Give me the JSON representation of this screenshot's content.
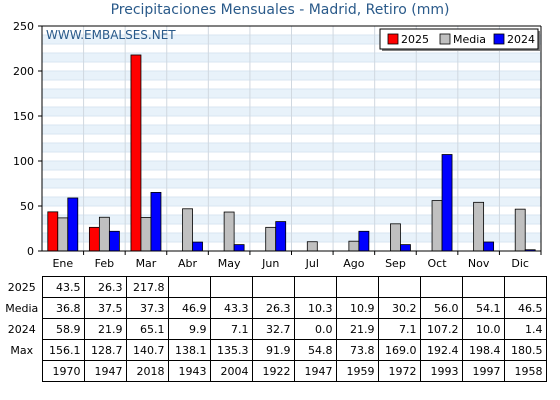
{
  "chart_data": {
    "type": "bar",
    "title": "Precipitaciones Mensuales - Madrid, Retiro (mm)",
    "watermark": "WWW.EMBALSES.NET",
    "categories": [
      "Ene",
      "Feb",
      "Mar",
      "Abr",
      "May",
      "Jun",
      "Jul",
      "Ago",
      "Sep",
      "Oct",
      "Nov",
      "Dic"
    ],
    "ylim": [
      0,
      250
    ],
    "yticks": [
      0,
      50,
      100,
      150,
      200,
      250
    ],
    "grid": true,
    "legend_position": "top-right",
    "series": [
      {
        "name": "2025",
        "color": "#ff0000",
        "values": [
          43.5,
          26.3,
          217.8,
          null,
          null,
          null,
          null,
          null,
          null,
          null,
          null,
          null
        ]
      },
      {
        "name": "Media",
        "color": "#c0c0c0",
        "values": [
          36.8,
          37.5,
          37.3,
          46.9,
          43.3,
          26.3,
          10.3,
          10.9,
          30.2,
          56.0,
          54.1,
          46.5
        ]
      },
      {
        "name": "2024",
        "color": "#0000ff",
        "values": [
          58.9,
          21.9,
          65.1,
          9.9,
          7.1,
          32.7,
          0.0,
          21.9,
          7.1,
          107.2,
          10.0,
          1.4
        ]
      }
    ],
    "table": {
      "rows": [
        {
          "label": "2025",
          "cells": [
            "43.5",
            "26.3",
            "217.8",
            "",
            "",
            "",
            "",
            "",
            "",
            "",
            "",
            ""
          ]
        },
        {
          "label": "Media",
          "cells": [
            "36.8",
            "37.5",
            "37.3",
            "46.9",
            "43.3",
            "26.3",
            "10.3",
            "10.9",
            "30.2",
            "56.0",
            "54.1",
            "46.5"
          ]
        },
        {
          "label": "2024",
          "cells": [
            "58.9",
            "21.9",
            "65.1",
            "9.9",
            "7.1",
            "32.7",
            "0.0",
            "21.9",
            "7.1",
            "107.2",
            "10.0",
            "1.4"
          ]
        },
        {
          "label": "Max",
          "cells": [
            "156.1",
            "128.7",
            "140.7",
            "138.1",
            "135.3",
            "91.9",
            "54.8",
            "73.8",
            "169.0",
            "192.4",
            "198.4",
            "180.5"
          ]
        },
        {
          "label": "",
          "cells": [
            "1970",
            "1947",
            "2018",
            "1943",
            "2004",
            "1922",
            "1947",
            "1959",
            "1972",
            "1993",
            "1997",
            "1958"
          ]
        }
      ]
    }
  }
}
